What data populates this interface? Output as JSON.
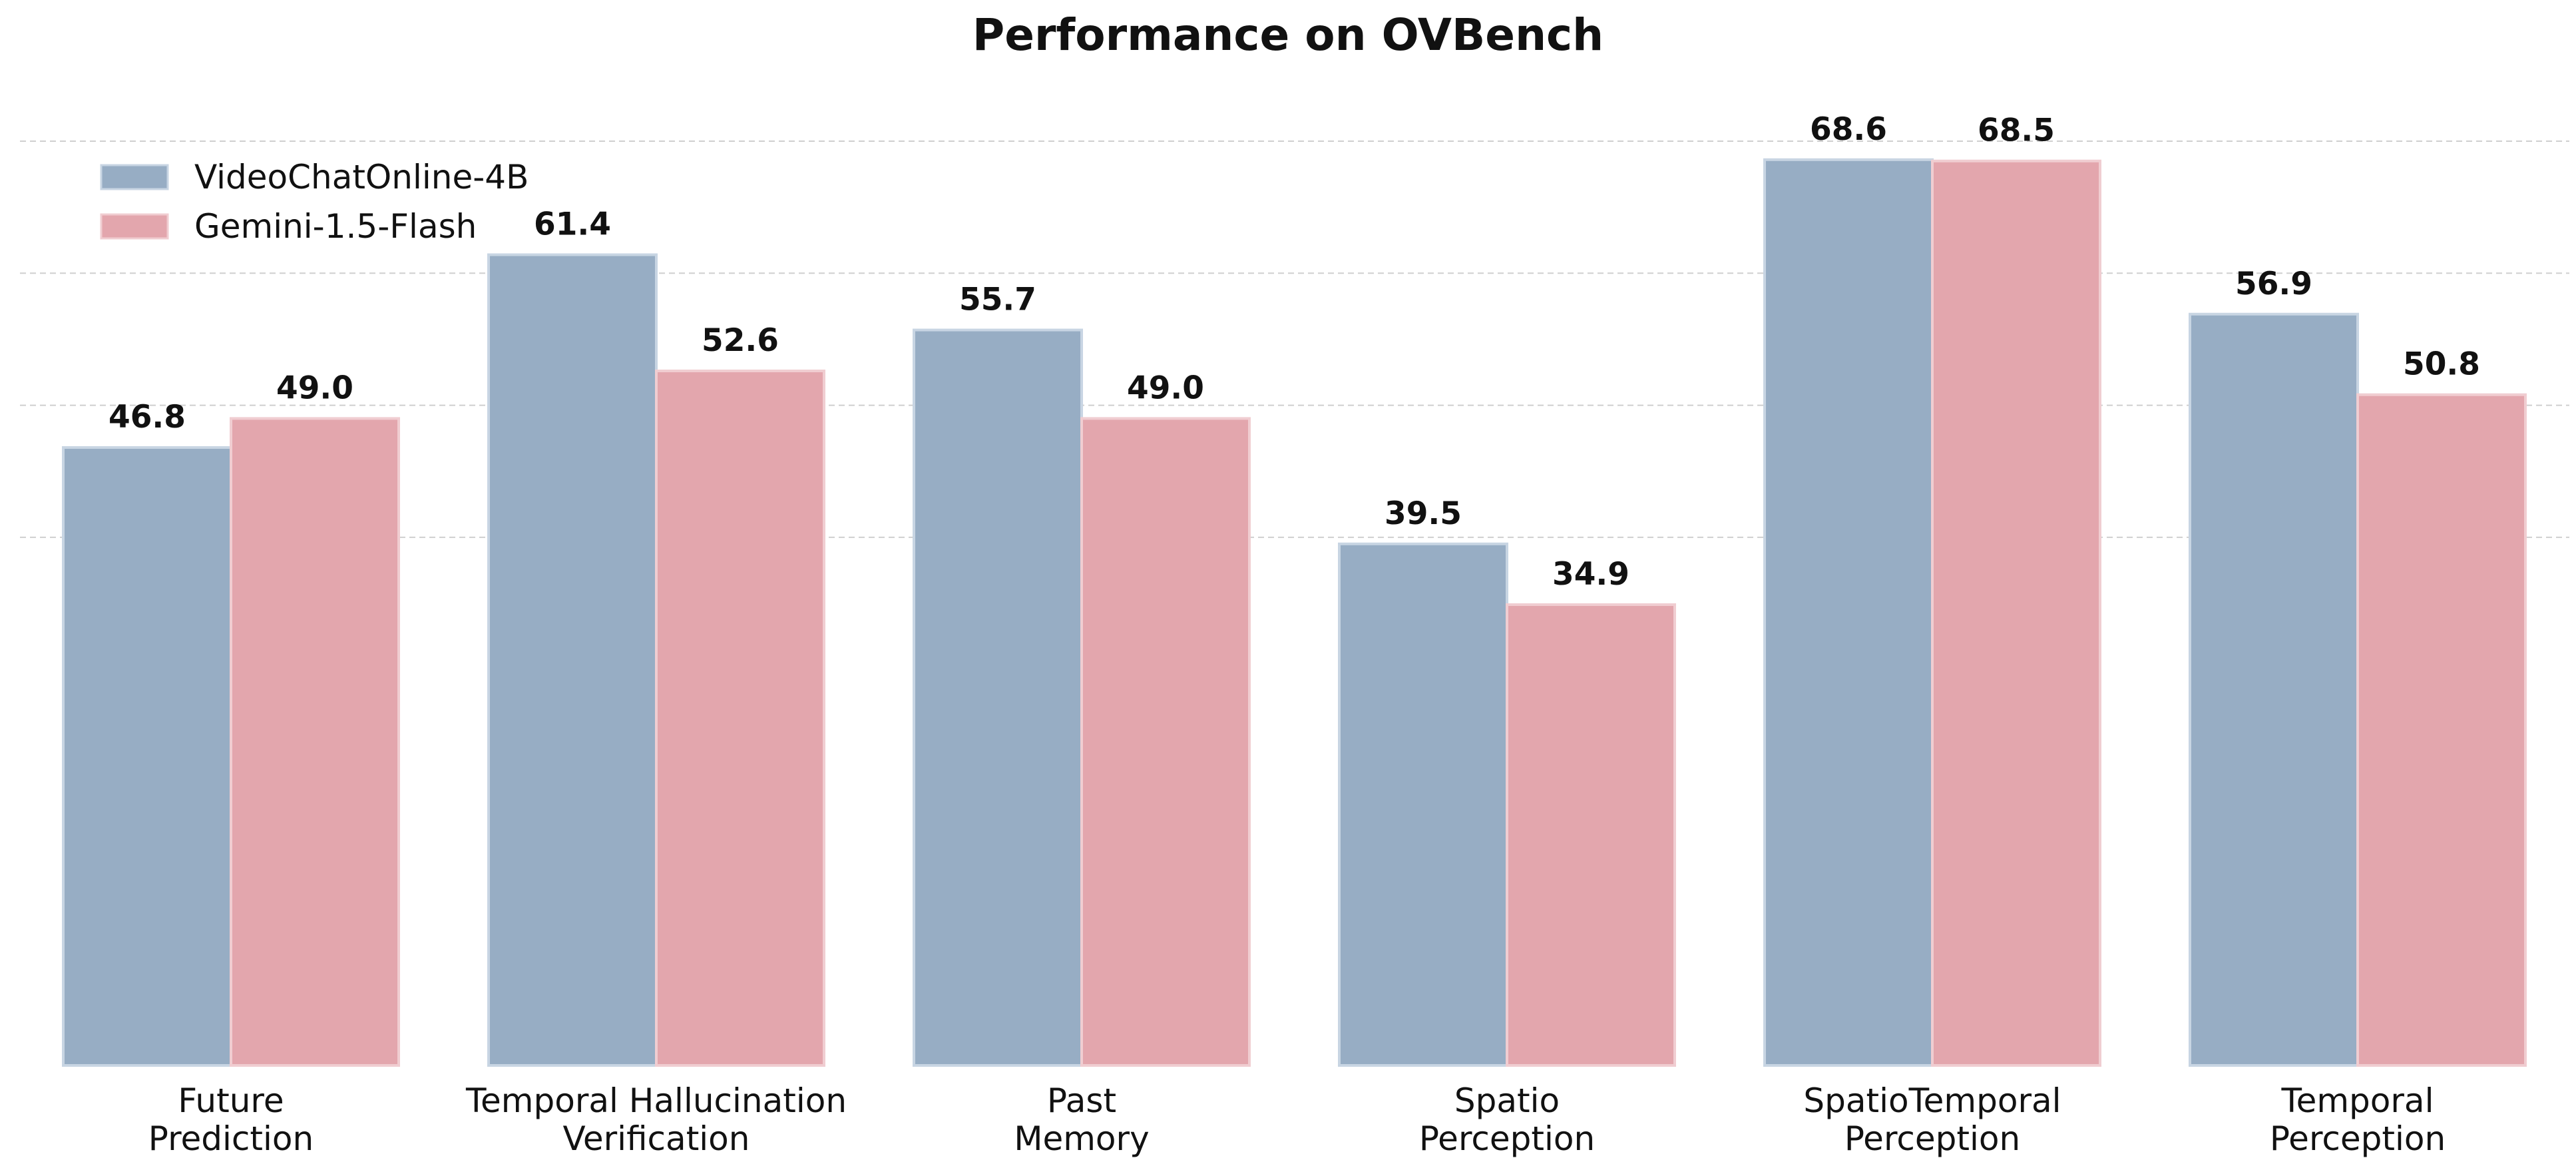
{
  "chart_data": {
    "type": "bar",
    "title": "Performance on OVBench",
    "xlabel": "",
    "ylabel": "",
    "categories": [
      [
        "Future",
        "Prediction"
      ],
      [
        "Temporal Hallucination",
        "Verification"
      ],
      [
        "Past",
        "Memory"
      ],
      [
        "Spatio",
        "Perception"
      ],
      [
        "SpatioTemporal",
        "Perception"
      ],
      [
        "Temporal",
        "Perception"
      ]
    ],
    "series": [
      {
        "name": "VideoChatOnline-4B",
        "color": "#97adc4",
        "edge_color": "#c8d5e3",
        "values": [
          46.8,
          61.4,
          55.7,
          39.5,
          68.6,
          56.9
        ],
        "value_labels": [
          "46.8",
          "61.4",
          "55.7",
          "39.5",
          "68.6",
          "56.9"
        ]
      },
      {
        "name": "Gemini-1.5-Flash",
        "color": "#e3a6ad",
        "edge_color": "#f0cdd1",
        "values": [
          49.0,
          52.6,
          49.0,
          34.9,
          68.5,
          50.8
        ],
        "value_labels": [
          "49.0",
          "52.6",
          "49.0",
          "34.9",
          "68.5",
          "50.8"
        ]
      }
    ],
    "ylim": [
      0,
      70
    ],
    "gridlines": [
      40,
      50,
      60,
      70
    ],
    "grid": "horizontal-dashed",
    "legend_position": "top-left",
    "y_ticks_visible": false
  }
}
